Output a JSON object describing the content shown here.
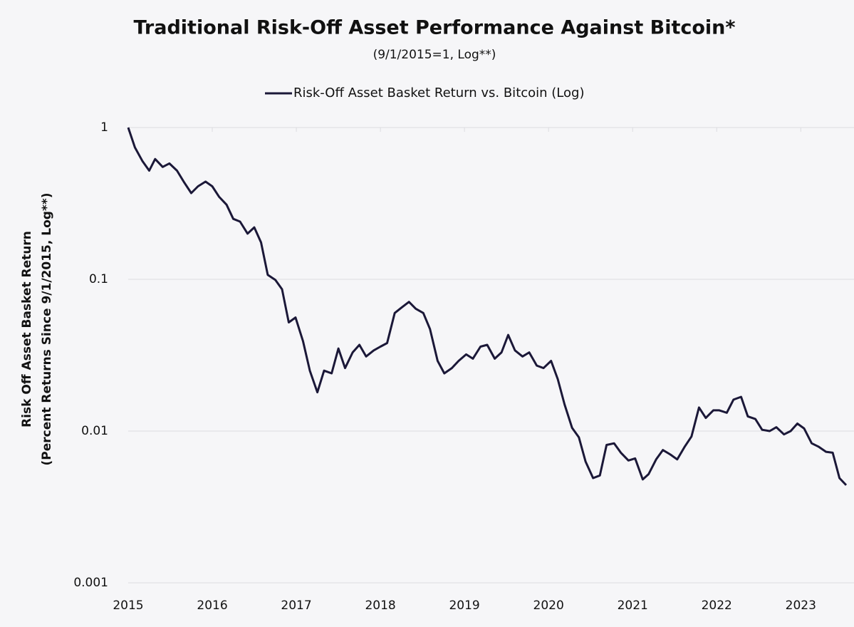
{
  "chart_data": {
    "type": "line",
    "title": "Traditional Risk-Off Asset Performance Against Bitcoin*",
    "subtitle": "(9/1/2015=1, Log**)",
    "y_label": [
      "Risk Off Asset Basket Return",
      "(Percent Returns Since 9/1/2015, Log**)"
    ],
    "log_y": true,
    "grid": true,
    "legend": "top",
    "xlim": [
      2015,
      2023.54
    ],
    "xticks": [
      2015,
      2016,
      2017,
      2018,
      2019,
      2020,
      2021,
      2022,
      2023
    ],
    "ylim": [
      0.001,
      1
    ],
    "yticks": [
      1,
      0.1,
      0.01,
      0.001
    ],
    "x": [
      2015,
      2015.08,
      2015.17,
      2015.25,
      2015.32,
      2015.41,
      2015.49,
      2015.58,
      2015.66,
      2015.75,
      2015.83,
      2015.92,
      2016,
      2016.08,
      2016.17,
      2016.25,
      2016.33,
      2016.42,
      2016.5,
      2016.58,
      2016.66,
      2016.75,
      2016.83,
      2016.91,
      2016.99,
      2017.08,
      2017.16,
      2017.25,
      2017.33,
      2017.42,
      2017.5,
      2017.58,
      2017.67,
      2017.75,
      2017.83,
      2017.92,
      2018,
      2018.08,
      2018.17,
      2018.25,
      2018.34,
      2018.42,
      2018.51,
      2018.59,
      2018.68,
      2018.76,
      2018.85,
      2018.93,
      2019.02,
      2019.1,
      2019.19,
      2019.27,
      2019.36,
      2019.44,
      2019.52,
      2019.6,
      2019.69,
      2019.77,
      2019.86,
      2019.94,
      2020.03,
      2020.11,
      2020.19,
      2020.28,
      2020.36,
      2020.44,
      2020.53,
      2020.61,
      2020.69,
      2020.78,
      2020.86,
      2020.95,
      2021.03,
      2021.12,
      2021.19,
      2021.28,
      2021.36,
      2021.45,
      2021.53,
      2021.62,
      2021.7,
      2021.79,
      2021.87,
      2021.96,
      2022.03,
      2022.12,
      2022.2,
      2022.29,
      2022.37,
      2022.46,
      2022.54,
      2022.63,
      2022.71,
      2022.8,
      2022.88,
      2022.96,
      2023.04,
      2023.13,
      2023.21,
      2023.3,
      2023.38,
      2023.46,
      2023.54
    ],
    "series": [
      {
        "name": "Risk-Off Asset Basket Return vs. Bitcoin (Log)",
        "color": "#1b1838",
        "values": [
          1,
          0.74,
          0.6,
          0.52,
          0.62,
          0.55,
          0.58,
          0.52,
          0.44,
          0.37,
          0.41,
          0.44,
          0.41,
          0.35,
          0.31,
          0.25,
          0.24,
          0.2,
          0.22,
          0.175,
          0.107,
          0.099,
          0.086,
          0.052,
          0.056,
          0.039,
          0.025,
          0.018,
          0.025,
          0.024,
          0.035,
          0.026,
          0.033,
          0.037,
          0.031,
          0.034,
          0.036,
          0.038,
          0.06,
          0.065,
          0.071,
          0.064,
          0.06,
          0.047,
          0.029,
          0.024,
          0.026,
          0.029,
          0.032,
          0.03,
          0.036,
          0.037,
          0.03,
          0.033,
          0.043,
          0.034,
          0.031,
          0.033,
          0.027,
          0.026,
          0.029,
          0.022,
          0.015,
          0.0105,
          0.0091,
          0.0063,
          0.0049,
          0.0051,
          0.0081,
          0.0083,
          0.0072,
          0.0064,
          0.0066,
          0.0048,
          0.0052,
          0.0065,
          0.0075,
          0.007,
          0.0065,
          0.0079,
          0.0092,
          0.0143,
          0.0122,
          0.0137,
          0.0137,
          0.0132,
          0.0161,
          0.0168,
          0.0125,
          0.012,
          0.0102,
          0.01,
          0.0106,
          0.0095,
          0.01,
          0.0112,
          0.0104,
          0.0083,
          0.0079,
          0.0073,
          0.0072,
          0.0049,
          0.0044
        ]
      }
    ]
  }
}
